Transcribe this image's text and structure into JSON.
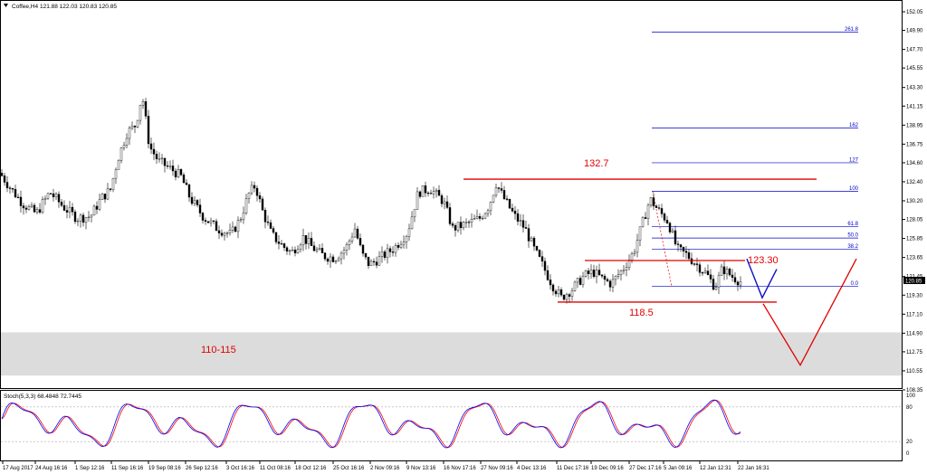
{
  "header": {
    "symbol": "Coffee,H4",
    "ohlc": "121.88 122.03 120.83 120.85",
    "collapse_icon": "triangle-down-icon"
  },
  "indicator": {
    "label": "Stoch(5,3,3) 68.4848 72.7445",
    "levels": [
      "100",
      "80",
      "20",
      "0"
    ],
    "main_color": "#0000ff",
    "signal_color": "#ff0000"
  },
  "chart_data": {
    "type": "candlestick",
    "symbol": "Coffee,H4",
    "price_axis_ticks": [
      "152.05",
      "149.90",
      "147.70",
      "145.55",
      "143.30",
      "141.15",
      "138.95",
      "136.75",
      "134.60",
      "132.40",
      "130.20",
      "128.05",
      "125.85",
      "123.65",
      "121.45",
      "119.30",
      "117.10",
      "114.90",
      "112.75",
      "110.55",
      "108.35"
    ],
    "current_price": "120.85",
    "time_axis_labels": [
      "17 Aug 2017",
      "24 Aug 16:16",
      "1 Sep 12:16",
      "11 Sep 16:16",
      "19 Sep 08:16",
      "26 Sep 12:16",
      "3 Oct 16:16",
      "11 Oct 08:16",
      "18 Oct 12:16",
      "25 Oct 16:16",
      "2 Nov 09:16",
      "9 Nov 13:16",
      "16 Nov 17:16",
      "27 Nov 09:16",
      "4 Dec 13:16",
      "11 Dec 17:16",
      "19 Dec 09:16",
      "27 Dec 17:16",
      "5 Jan 09:16",
      "12 Jan 12:31",
      "22 Jan 16:31"
    ],
    "price_path": [
      [
        0,
        133.4
      ],
      [
        12,
        131.6
      ],
      [
        25,
        129.9
      ],
      [
        40,
        128.7
      ],
      [
        55,
        131.2
      ],
      [
        70,
        129.5
      ],
      [
        85,
        128.2
      ],
      [
        100,
        128.4
      ],
      [
        112,
        130.5
      ],
      [
        122,
        131.5
      ],
      [
        130,
        135.0
      ],
      [
        140,
        138.0
      ],
      [
        150,
        139.0
      ],
      [
        157,
        142.5
      ],
      [
        165,
        136.5
      ],
      [
        175,
        134.8
      ],
      [
        190,
        133.8
      ],
      [
        200,
        133.0
      ],
      [
        210,
        130.5
      ],
      [
        225,
        128.3
      ],
      [
        240,
        127.0
      ],
      [
        255,
        126.3
      ],
      [
        265,
        128.0
      ],
      [
        275,
        131.0
      ],
      [
        282,
        132.0
      ],
      [
        290,
        129.0
      ],
      [
        300,
        126.3
      ],
      [
        312,
        125.0
      ],
      [
        322,
        124.2
      ],
      [
        335,
        126.0
      ],
      [
        345,
        124.8
      ],
      [
        358,
        123.8
      ],
      [
        370,
        123.6
      ],
      [
        382,
        124.7
      ],
      [
        392,
        127.0
      ],
      [
        400,
        124.0
      ],
      [
        408,
        122.8
      ],
      [
        420,
        123.6
      ],
      [
        435,
        124.7
      ],
      [
        450,
        126.5
      ],
      [
        462,
        131.2
      ],
      [
        475,
        131.6
      ],
      [
        490,
        130.1
      ],
      [
        500,
        127.0
      ],
      [
        515,
        127.5
      ],
      [
        530,
        128.2
      ],
      [
        540,
        129.6
      ],
      [
        548,
        132.2
      ],
      [
        556,
        130.6
      ],
      [
        568,
        128.5
      ],
      [
        580,
        127.0
      ],
      [
        590,
        124.6
      ],
      [
        600,
        122.6
      ],
      [
        610,
        120.5
      ],
      [
        620,
        119.0
      ],
      [
        632,
        120.0
      ],
      [
        645,
        121.5
      ],
      [
        655,
        122.0
      ],
      [
        665,
        121.2
      ],
      [
        675,
        120.6
      ],
      [
        688,
        122.3
      ],
      [
        700,
        124.3
      ],
      [
        710,
        127.7
      ],
      [
        718,
        130.4
      ],
      [
        728,
        129.0
      ],
      [
        738,
        127.8
      ],
      [
        748,
        124.6
      ],
      [
        758,
        124.0
      ],
      [
        768,
        123.0
      ],
      [
        780,
        121.8
      ],
      [
        790,
        120.2
      ],
      [
        798,
        122.4
      ],
      [
        808,
        121.5
      ],
      [
        818,
        120.85
      ]
    ],
    "levels": [
      {
        "label": "132.7",
        "price": 132.7
      },
      {
        "label": "123.30",
        "price": 123.3
      },
      {
        "label": "118.5",
        "price": 118.5
      }
    ],
    "support_zone": {
      "label": "110-115",
      "low": 110.0,
      "high": 115.0
    },
    "fibonacci": [
      {
        "label": "261.8",
        "price": 149.7
      },
      {
        "label": "162",
        "price": 138.6
      },
      {
        "label": "127",
        "price": 134.6
      },
      {
        "label": "100",
        "price": 131.3
      },
      {
        "label": "61.8",
        "price": 127.2
      },
      {
        "label": "50.0",
        "price": 125.9
      },
      {
        "label": "38.2",
        "price": 124.6
      },
      {
        "label": "0.0",
        "price": 120.3
      }
    ],
    "projection_blue": [
      [
        825,
        123.5
      ],
      [
        842,
        119.0
      ],
      [
        858,
        122.3
      ]
    ],
    "projection_red": [
      [
        843,
        118.3
      ],
      [
        884,
        111.2
      ],
      [
        946,
        123.5
      ]
    ],
    "colors": {
      "levels": "#e00000",
      "fib": "#0000cc",
      "zone": "#dcdcdc",
      "candles": "#000000"
    },
    "grid": false
  }
}
